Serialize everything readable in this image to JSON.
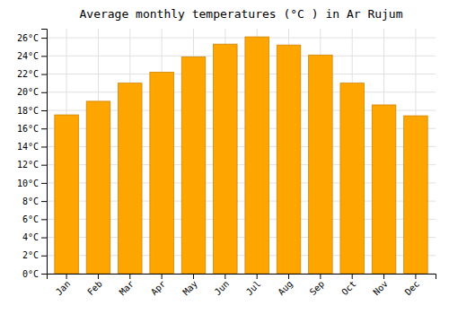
{
  "chart_data": {
    "type": "bar",
    "title": "Average monthly temperatures (°C ) in Ar Rujum",
    "categories": [
      "Jan",
      "Feb",
      "Mar",
      "Apr",
      "May",
      "Jun",
      "Jul",
      "Aug",
      "Sep",
      "Oct",
      "Nov",
      "Dec"
    ],
    "values": [
      17.5,
      19.0,
      21.0,
      22.2,
      23.9,
      25.3,
      26.1,
      25.2,
      24.1,
      21.0,
      18.6,
      17.4
    ],
    "color": "#FFA500",
    "ylim": [
      0,
      27
    ],
    "yticks": [
      {
        "value": 0,
        "label": "0°C"
      },
      {
        "value": 2,
        "label": "2°C"
      },
      {
        "value": 4,
        "label": "4°C"
      },
      {
        "value": 6,
        "label": "6°C"
      },
      {
        "value": 8,
        "label": "8°C"
      },
      {
        "value": 10,
        "label": "10°C"
      },
      {
        "value": 12,
        "label": "12°C"
      },
      {
        "value": 14,
        "label": "14°C"
      },
      {
        "value": 16,
        "label": "16°C"
      },
      {
        "value": 18,
        "label": "18°C"
      },
      {
        "value": 20,
        "label": "20°C"
      },
      {
        "value": 22,
        "label": "22°C"
      },
      {
        "value": 24,
        "label": "24°C"
      },
      {
        "value": 26,
        "label": "26°C"
      }
    ],
    "grid": true
  }
}
